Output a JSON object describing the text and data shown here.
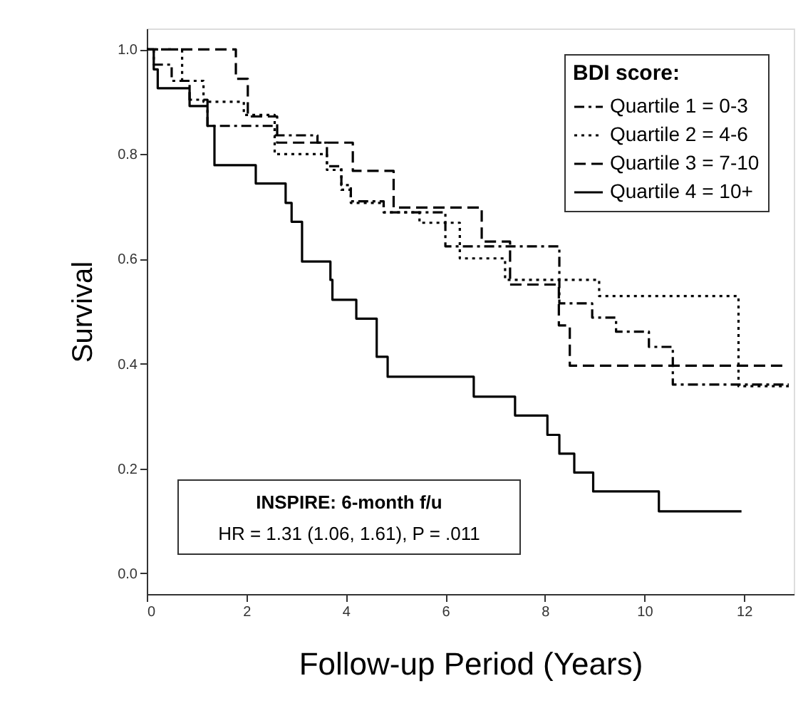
{
  "chart_data": {
    "type": "step",
    "xlabel": "Follow-up Period (Years)",
    "ylabel": "Survival",
    "legend_title": "BDI score:",
    "xlim": [
      0,
      13
    ],
    "xticks": [
      0,
      2,
      4,
      6,
      8,
      10,
      12
    ],
    "ylim": [
      -0.04,
      1.04
    ],
    "yticks": [
      {
        "value": 0,
        "label": "0.0"
      },
      0.2,
      0.4,
      0.6,
      0.8,
      {
        "value": 1,
        "label": "1.0"
      }
    ],
    "grid": false,
    "legend": "top right",
    "marker": "none",
    "annotations": [
      "INSPIRE: 6-month f/u",
      "HR = 1.31 (1.06, 1.61), P = .011"
    ],
    "series": [
      {
        "name": "Quartile 1 = 0-3",
        "color": "#000000",
        "line_style": "dashdot",
        "x": [
          0,
          0.14,
          0.5,
          0.86,
          1.22,
          2.57,
          3.43,
          3.62,
          3.91,
          4.1,
          4.76,
          6.0,
          8.29,
          8.95,
          9.43,
          10.09,
          10.57,
          12.9
        ],
        "values": [
          1,
          0.971,
          0.94,
          0.904,
          0.854,
          0.836,
          0.822,
          0.777,
          0.741,
          0.71,
          0.689,
          0.624,
          0.515,
          0.488,
          0.461,
          0.432,
          0.36,
          0.36
        ]
      },
      {
        "name": "Quartile 2 = 4-6",
        "color": "#000000",
        "line_style": "dotted",
        "x": [
          0,
          0.71,
          1.14,
          1.95,
          2.57,
          3.62,
          3.91,
          4.1,
          4.76,
          5.48,
          6.29,
          7.2,
          9.09,
          11.89,
          12.9
        ],
        "values": [
          1,
          0.94,
          0.9,
          0.875,
          0.8,
          0.77,
          0.732,
          0.707,
          0.689,
          0.669,
          0.601,
          0.56,
          0.529,
          0.357,
          0.357
        ]
      },
      {
        "name": "Quartile 3 = 7-10",
        "color": "#000000",
        "line_style": "dashed",
        "x": [
          0,
          1.79,
          2.03,
          2.62,
          4.14,
          4.96,
          6.73,
          7.3,
          8.28,
          8.5,
          12.8
        ],
        "values": [
          1,
          0.944,
          0.872,
          0.822,
          0.768,
          0.698,
          0.633,
          0.551,
          0.473,
          0.396,
          0.396
        ]
      },
      {
        "name": "Quartile 4 = 10+",
        "color": "#000000",
        "line_style": "solid",
        "x": [
          0,
          0.14,
          0.22,
          0.86,
          1.22,
          1.36,
          2.19,
          2.79,
          2.91,
          3.12,
          3.69,
          3.73,
          4.21,
          4.62,
          4.84,
          6.57,
          7.4,
          8.05,
          8.29,
          8.59,
          8.97,
          10.29,
          11.95
        ],
        "values": [
          1,
          0.962,
          0.926,
          0.892,
          0.854,
          0.779,
          0.744,
          0.707,
          0.671,
          0.595,
          0.56,
          0.522,
          0.486,
          0.413,
          0.375,
          0.337,
          0.301,
          0.264,
          0.228,
          0.192,
          0.156,
          0.118,
          0.118
        ]
      }
    ]
  }
}
